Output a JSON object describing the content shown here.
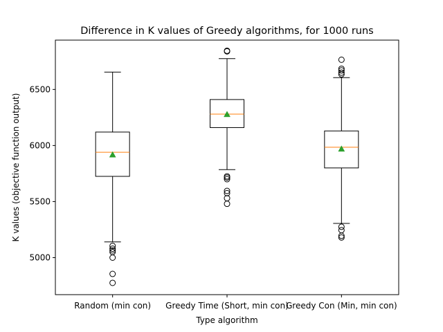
{
  "chart_data": {
    "type": "box",
    "title": "Difference in K values of Greedy algorithms, for 1000 runs",
    "xlabel": "Type algorithm",
    "ylabel": "K values (objective function output)",
    "ylim": [
      4670,
      6940
    ],
    "yticks": [
      5000,
      5500,
      6000,
      6500
    ],
    "grid": false,
    "categories": [
      "Random (min con)",
      "Greedy Time (Short, min con)",
      "Greedy Con (Min, min con)"
    ],
    "boxes": [
      {
        "whisker_low": 5140,
        "q1": 5725,
        "median": 5940,
        "q3": 6120,
        "whisker_high": 6655,
        "mean": 5918,
        "outliers": [
          5105,
          5080,
          5065,
          5050,
          5000,
          4855,
          4775
        ]
      },
      {
        "whisker_low": 5785,
        "q1": 6160,
        "median": 6280,
        "q3": 6410,
        "whisker_high": 6775,
        "mean": 6278,
        "outliers": [
          6845,
          6840,
          5725,
          5715,
          5700,
          5595,
          5575,
          5530,
          5480
        ]
      },
      {
        "whisker_low": 5305,
        "q1": 5800,
        "median": 5985,
        "q3": 6130,
        "whisker_high": 6605,
        "mean": 5970,
        "outliers": [
          6765,
          6685,
          6670,
          6650,
          6635,
          5275,
          5245,
          5195,
          5180
        ]
      }
    ],
    "colors": {
      "box": "#000000",
      "median": "#ff7f0e",
      "mean": "#2ca02c",
      "outlier": "#000000"
    }
  }
}
